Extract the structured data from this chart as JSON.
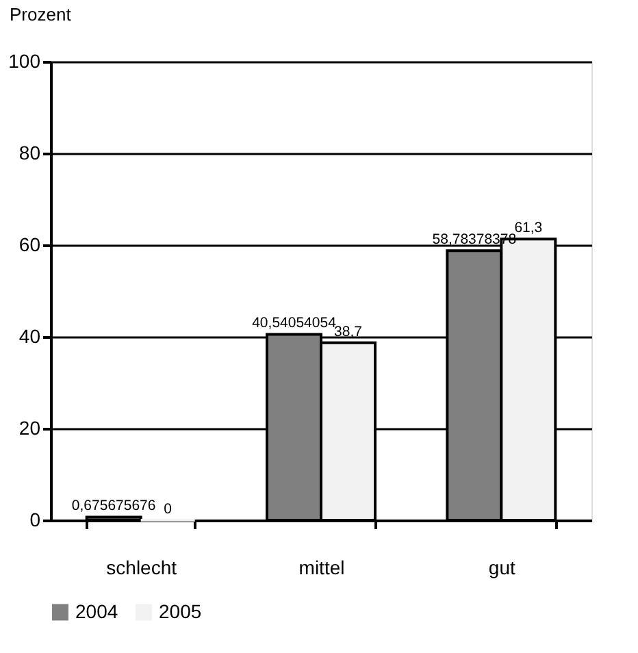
{
  "chart_data": {
    "type": "bar",
    "ylabel": "Prozent",
    "categories": [
      "schlecht",
      "mittel",
      "gut"
    ],
    "series": [
      {
        "name": "2004",
        "color": "#808080",
        "values": [
          0.675675676,
          40.54054054,
          58.78378378
        ],
        "value_labels": [
          "0,675675676",
          "40,54054054",
          "58,78378378"
        ]
      },
      {
        "name": "2005",
        "color": "#f2f2f2",
        "values": [
          0,
          38.7,
          61.3
        ],
        "value_labels": [
          "0",
          "38,7",
          "61,3"
        ]
      }
    ],
    "ylim": [
      0,
      100
    ],
    "yticks": [
      0,
      20,
      40,
      60,
      80,
      100
    ],
    "grid": "y",
    "legend": "bottom"
  }
}
